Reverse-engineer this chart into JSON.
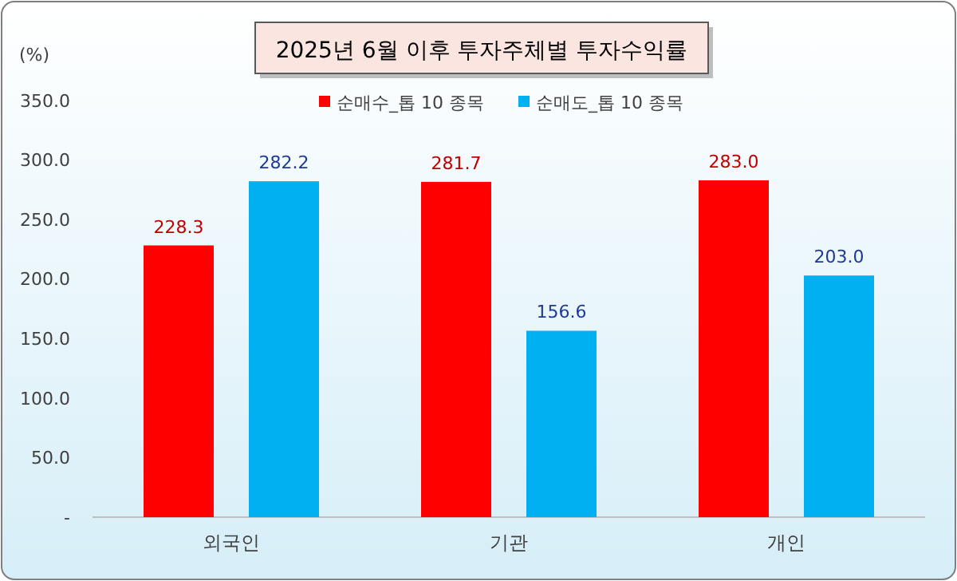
{
  "chart_data": {
    "type": "bar",
    "title": "2025년 6월 이후 투자주체별 투자수익률",
    "ylabel": "(%)",
    "categories": [
      "외국인",
      "기관",
      "개인"
    ],
    "series": [
      {
        "name": "순매수_톱 10 종목",
        "color": "#ff0000",
        "values": [
          228.3,
          281.7,
          283.0
        ],
        "value_labels": [
          "228.3",
          "281.7",
          "283.0"
        ]
      },
      {
        "name": "순매도_톱 10 종목",
        "color": "#00b0f0",
        "values": [
          282.2,
          156.6,
          203.0
        ],
        "value_labels": [
          "282.2",
          "156.6",
          "203.0"
        ]
      }
    ],
    "ylim": [
      0,
      350
    ],
    "yticks": [
      {
        "value": 0,
        "label": "-"
      },
      {
        "value": 50,
        "label": "50.0"
      },
      {
        "value": 100,
        "label": "100.0"
      },
      {
        "value": 150,
        "label": "150.0"
      },
      {
        "value": 200,
        "label": "200.0"
      },
      {
        "value": 250,
        "label": "250.0"
      },
      {
        "value": 300,
        "label": "300.0"
      },
      {
        "value": 350,
        "label": "350.0"
      }
    ],
    "legend": "top",
    "grid": false
  }
}
